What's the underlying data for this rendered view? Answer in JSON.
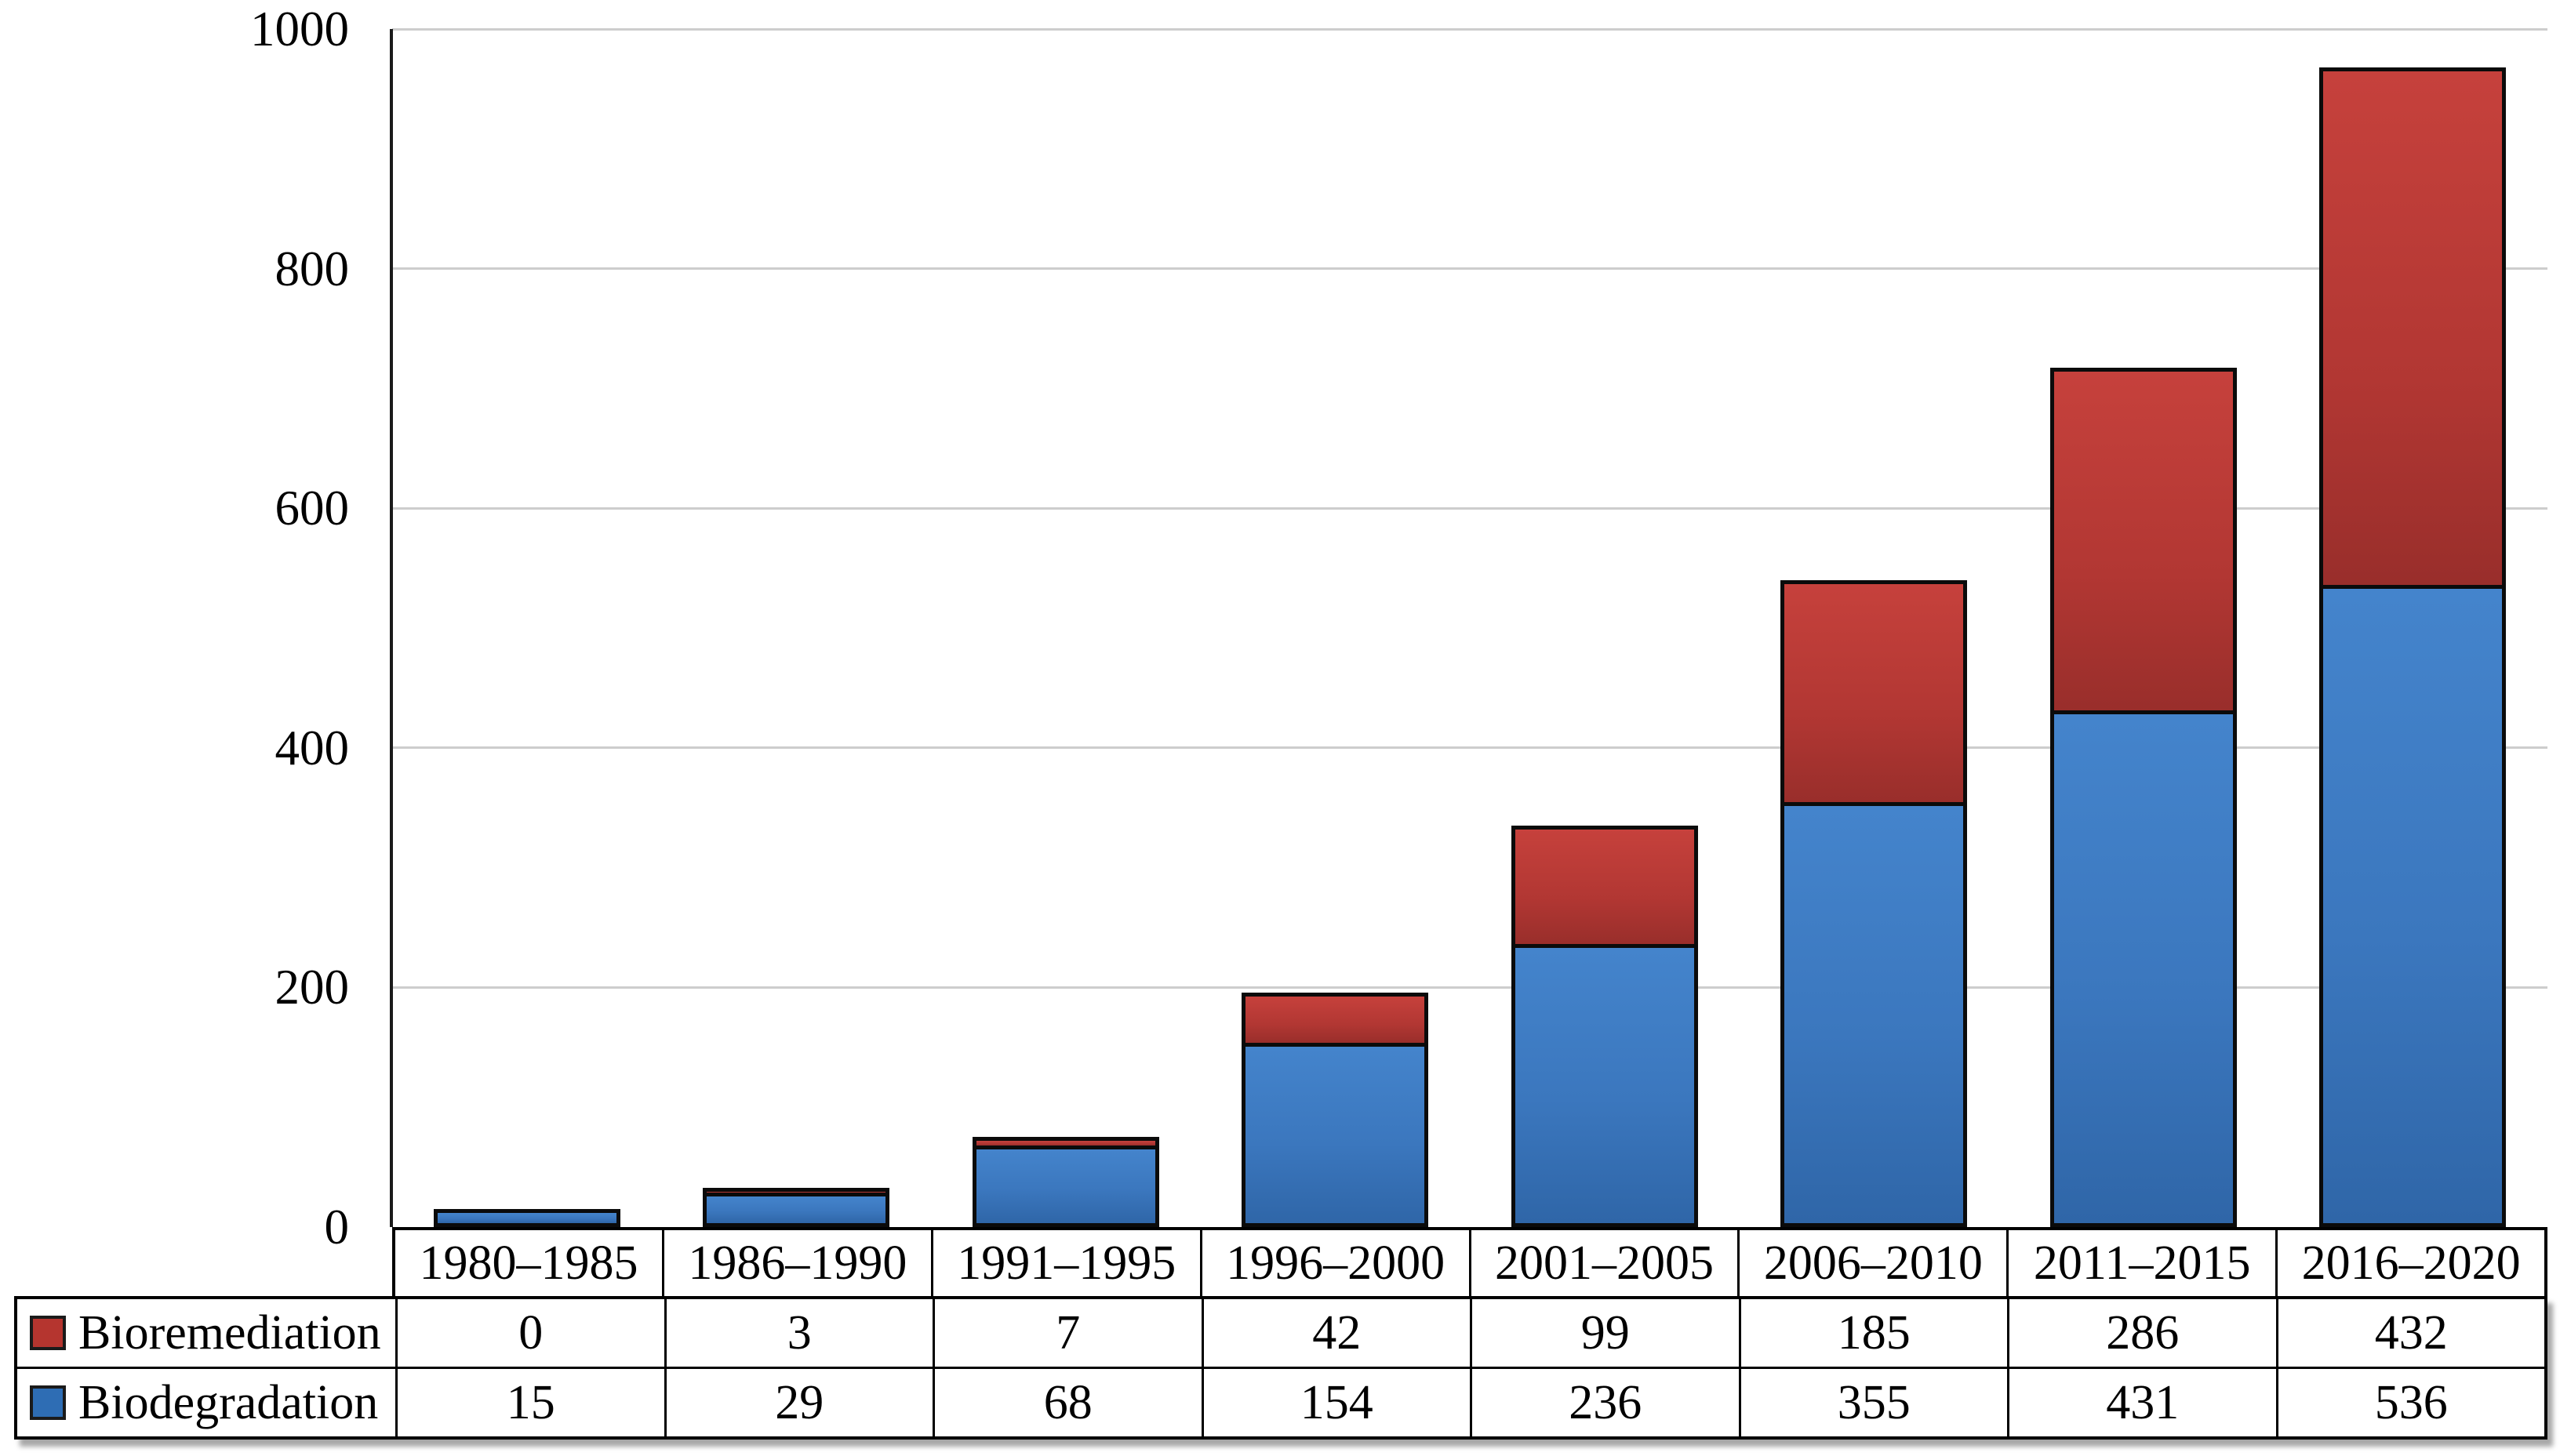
{
  "chart_data": {
    "type": "bar",
    "stacked": true,
    "title": "",
    "xlabel": "",
    "ylabel": "",
    "categories": [
      "1980–1985",
      "1986–1990",
      "1991–1995",
      "1996–2000",
      "2001–2005",
      "2006–2010",
      "2011–2015",
      "2016–2020"
    ],
    "series": [
      {
        "name": "Bioremediation",
        "values": [
          0,
          3,
          7,
          42,
          99,
          185,
          286,
          432
        ],
        "swatch_color": "#B5352F",
        "gradient_top": "#C6413C",
        "gradient_bottom": "#992E2B",
        "stack_order": "top"
      },
      {
        "name": "Biodegradation",
        "values": [
          15,
          29,
          68,
          154,
          236,
          355,
          431,
          536
        ],
        "swatch_color": "#2E6DB4",
        "gradient_top": "#4484CC",
        "gradient_bottom": "#2F66A8",
        "stack_order": "bottom"
      }
    ],
    "ylim": [
      0,
      1000
    ],
    "yticks": [
      0,
      200,
      400,
      600,
      800,
      1000
    ],
    "grid": true,
    "legend_position": "table-left"
  },
  "colors": {
    "bar_border": "#0b0b0b",
    "gridline": "#cdcdcd",
    "axis_line": "#1a1a1a",
    "table_border": "#000000",
    "background": "#ffffff"
  }
}
